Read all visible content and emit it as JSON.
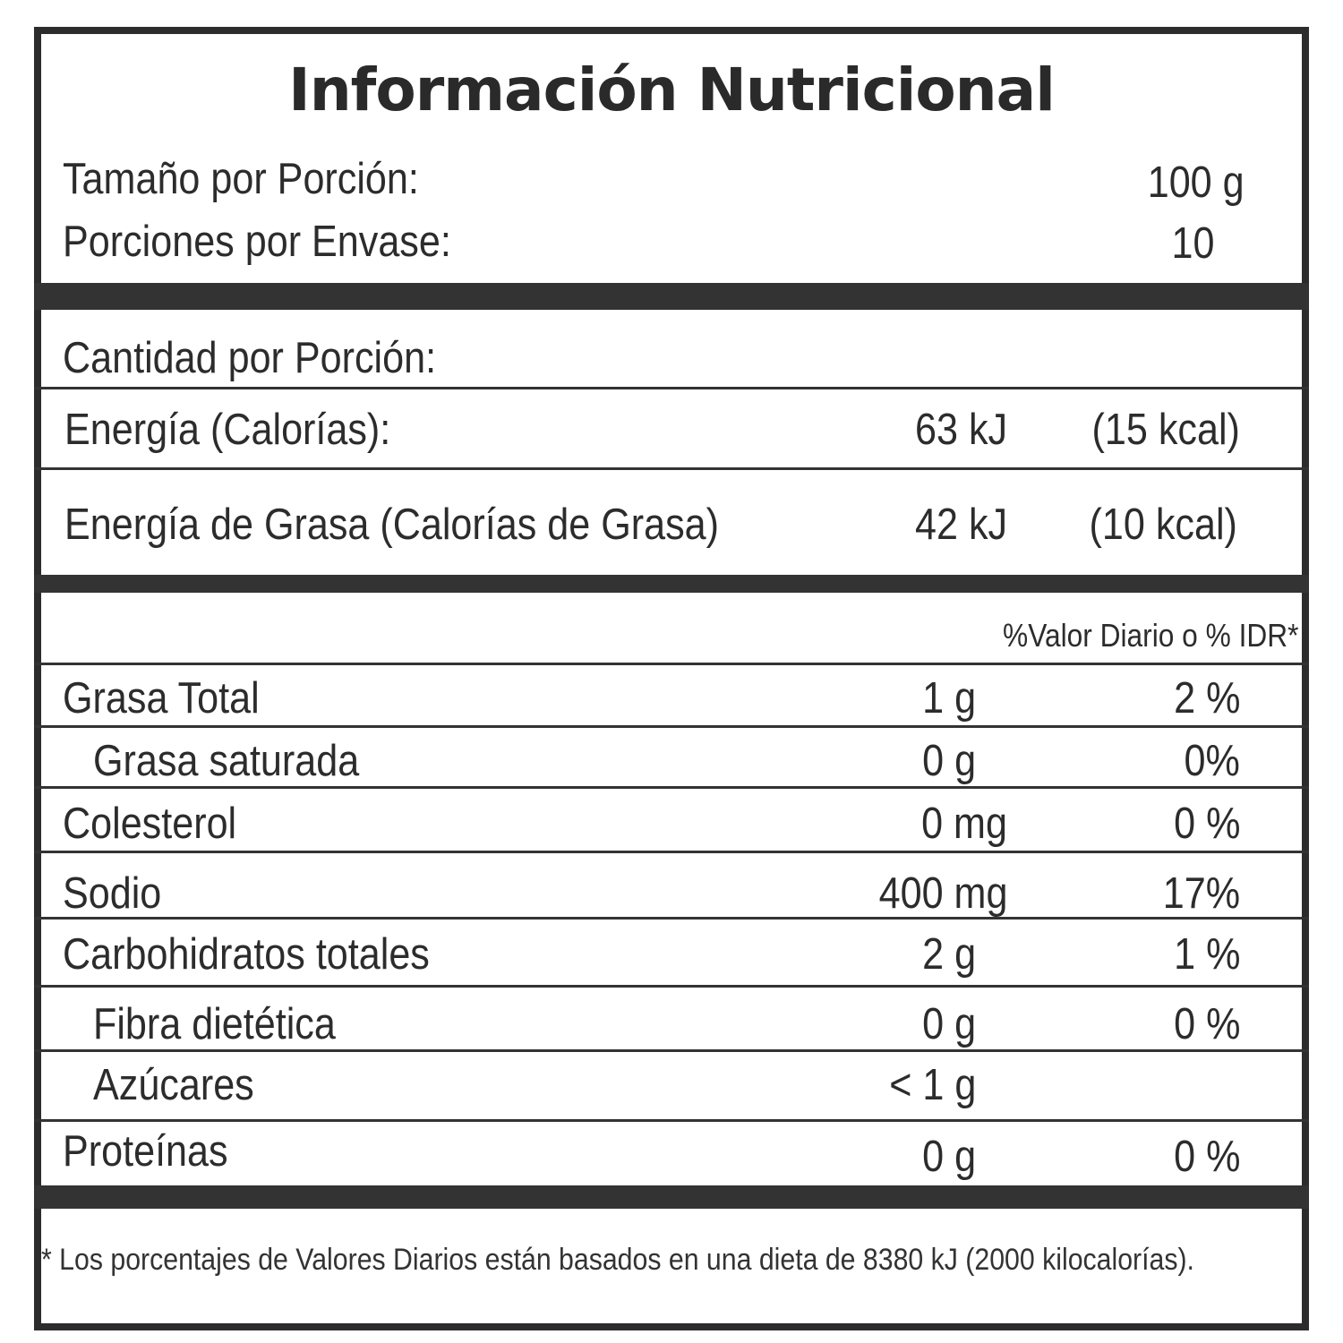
{
  "title": "Información Nutricional",
  "serving": {
    "size_label": "Tamaño por Porción:",
    "size_value": "100 g",
    "servings_label": "Porciones por Envase:",
    "servings_value": "10"
  },
  "amount_per_serving_label": "Cantidad por Porción:",
  "energy": {
    "label": "Energía (Calorías):",
    "kj": "63 kJ",
    "kcal": "(15 kcal)"
  },
  "fat_energy": {
    "label": "Energía de Grasa (Calorías de Grasa)",
    "kj": "42 kJ",
    "kcal": "(10 kcal)"
  },
  "daily_value_header": "%Valor Diario o % IDR*",
  "nutrients": [
    {
      "name": "Grasa Total",
      "amount": "1 g",
      "dv": "2 %"
    },
    {
      "name": "Grasa saturada",
      "amount": "0 g",
      "dv": "0%"
    },
    {
      "name": "Colesterol",
      "amount": "0 mg",
      "dv": "0 %"
    },
    {
      "name": "Sodio",
      "amount": "400 mg",
      "dv": "17%"
    },
    {
      "name": "Carbohidratos totales",
      "amount": "2 g",
      "dv": "1 %"
    },
    {
      "name": "Fibra dietética",
      "amount": "0 g",
      "dv": "0 %"
    },
    {
      "name": "Azúcares",
      "amount": "< 1 g",
      "dv": ""
    },
    {
      "name": "Proteínas",
      "amount": "0 g",
      "dv": "0 %"
    }
  ],
  "footnote": "* Los porcentajes de Valores Diarios están basados en una dieta de 8380 kJ (2000 kilocalorías)."
}
